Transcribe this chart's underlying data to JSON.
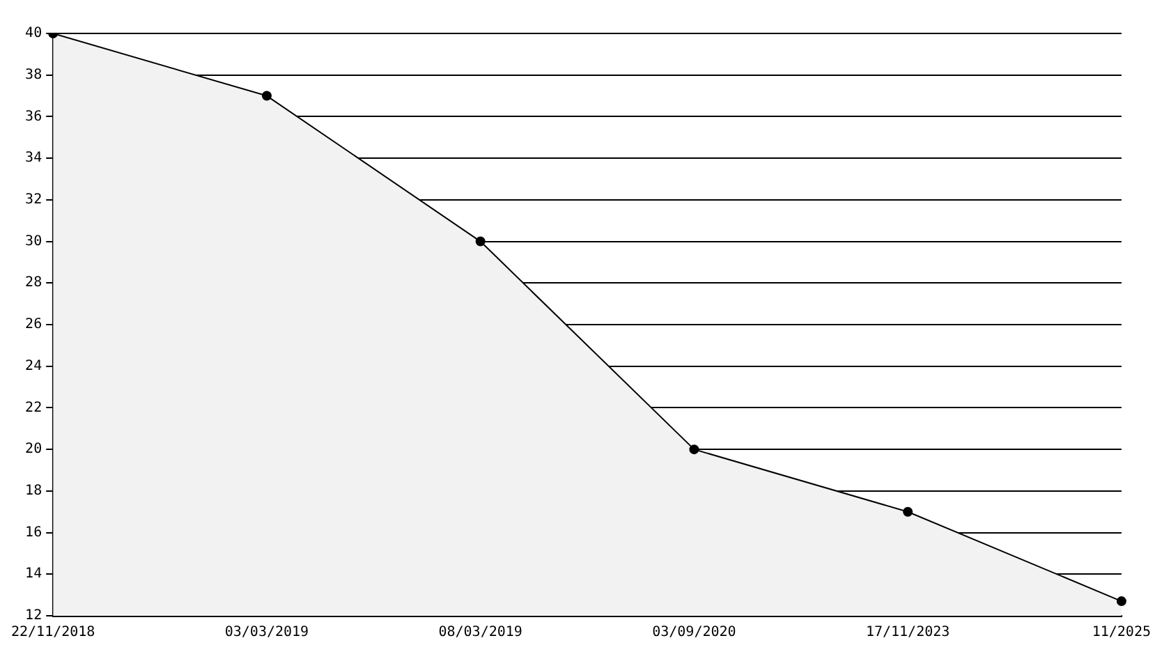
{
  "chart_data": {
    "type": "area",
    "categories": [
      "22/11/2018",
      "03/03/2019",
      "08/03/2019",
      "03/09/2020",
      "17/11/2023",
      "11/2025"
    ],
    "series": [
      {
        "color": "#000000",
        "values": [
          40,
          37,
          30,
          20,
          17,
          12.7
        ]
      }
    ],
    "ylim": [
      12,
      40
    ],
    "yticks": [
      12,
      14,
      16,
      18,
      20,
      22,
      24,
      26,
      28,
      30,
      32,
      34,
      36,
      38,
      40
    ],
    "grid": "y",
    "marker": "circle",
    "line_style": "solid"
  }
}
